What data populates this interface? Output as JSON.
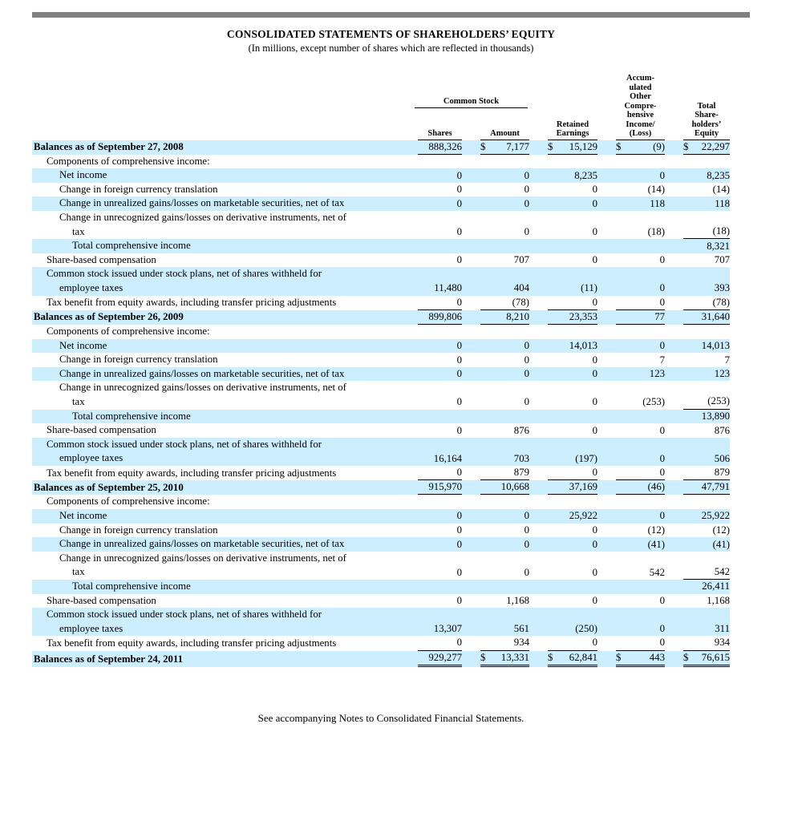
{
  "page": {
    "title": "CONSOLIDATED STATEMENTS OF SHAREHOLDERS’ EQUITY",
    "subtitle": "(In millions, except number of shares which are reflected in thousands)",
    "footer": "See accompanying Notes to Consolidated Financial Statements."
  },
  "colors": {
    "row_highlight": "#cceeff",
    "top_bar": "#808080"
  },
  "table": {
    "group_header": "Common Stock",
    "columns": [
      {
        "lines": [
          "Shares"
        ]
      },
      {
        "lines": [
          "Amount"
        ]
      },
      {
        "lines": [
          "Retained",
          "Earnings"
        ]
      },
      {
        "lines": [
          "Accum-",
          "ulated",
          "Other",
          "Compre-",
          "hensive",
          "Income/",
          "(Loss)"
        ]
      },
      {
        "lines": [
          "Total",
          "Share-",
          "holders’",
          "Equity"
        ]
      }
    ],
    "rows": [
      {
        "label": "Balances as of September 27, 2008",
        "indent": 0,
        "bold": true,
        "shaded": true,
        "dollar": true,
        "border": "all",
        "values": [
          "888,326",
          "7,177",
          "15,129",
          "(9)",
          "22,297"
        ]
      },
      {
        "label": "Components of comprehensive income:",
        "indent": 1,
        "shaded": false,
        "values": [
          "",
          "",
          "",
          "",
          ""
        ]
      },
      {
        "label": "Net income",
        "indent": 2,
        "shaded": true,
        "values": [
          "0",
          "0",
          "8,235",
          "0",
          "8,235"
        ]
      },
      {
        "label": "Change in foreign currency translation",
        "indent": 2,
        "shaded": false,
        "values": [
          "0",
          "0",
          "0",
          "(14)",
          "(14)"
        ]
      },
      {
        "label": "Change in unrealized gains/losses on marketable securities, net of tax",
        "indent": 2,
        "shaded": true,
        "values": [
          "0",
          "0",
          "0",
          "118",
          "118"
        ]
      },
      {
        "label": "Change in unrecognized gains/losses on derivative instruments, net of",
        "label2": "tax",
        "indent": 2,
        "indent2": 3,
        "shaded": false,
        "border": "total",
        "values": [
          "0",
          "0",
          "0",
          "(18)",
          "(18)"
        ]
      },
      {
        "label": "Total comprehensive income",
        "indent": 3,
        "shaded": true,
        "values": [
          "",
          "",
          "",
          "",
          "8,321"
        ]
      },
      {
        "label": "Share-based compensation",
        "indent": 1,
        "shaded": false,
        "values": [
          "0",
          "707",
          "0",
          "0",
          "707"
        ]
      },
      {
        "label": "Common stock issued under stock plans, net of shares withheld for",
        "label2": "employee taxes",
        "indent": 1,
        "indent2": 2,
        "shaded": true,
        "values": [
          "11,480",
          "404",
          "(11)",
          "0",
          "393"
        ]
      },
      {
        "label": "Tax benefit from equity awards, including transfer pricing adjustments",
        "indent": 1,
        "shaded": false,
        "border": "all",
        "values": [
          "0",
          "(78)",
          "0",
          "0",
          "(78)"
        ]
      },
      {
        "label": "Balances as of September 26, 2009",
        "indent": 0,
        "bold": true,
        "shaded": true,
        "border": "all",
        "values": [
          "899,806",
          "8,210",
          "23,353",
          "77",
          "31,640"
        ]
      },
      {
        "label": "Components of comprehensive income:",
        "indent": 1,
        "shaded": false,
        "values": [
          "",
          "",
          "",
          "",
          ""
        ]
      },
      {
        "label": "Net income",
        "indent": 2,
        "shaded": true,
        "values": [
          "0",
          "0",
          "14,013",
          "0",
          "14,013"
        ]
      },
      {
        "label": "Change in foreign currency translation",
        "indent": 2,
        "shaded": false,
        "values": [
          "0",
          "0",
          "0",
          "7",
          "7"
        ]
      },
      {
        "label": "Change in unrealized gains/losses on marketable securities, net of tax",
        "indent": 2,
        "shaded": true,
        "values": [
          "0",
          "0",
          "0",
          "123",
          "123"
        ]
      },
      {
        "label": "Change in unrecognized gains/losses on derivative instruments, net of",
        "label2": "tax",
        "indent": 2,
        "indent2": 3,
        "shaded": false,
        "border": "total",
        "values": [
          "0",
          "0",
          "0",
          "(253)",
          "(253)"
        ]
      },
      {
        "label": "Total comprehensive income",
        "indent": 3,
        "shaded": true,
        "values": [
          "",
          "",
          "",
          "",
          "13,890"
        ]
      },
      {
        "label": "Share-based compensation",
        "indent": 1,
        "shaded": false,
        "values": [
          "0",
          "876",
          "0",
          "0",
          "876"
        ]
      },
      {
        "label": "Common stock issued under stock plans, net of shares withheld for",
        "label2": "employee taxes",
        "indent": 1,
        "indent2": 2,
        "shaded": true,
        "values": [
          "16,164",
          "703",
          "(197)",
          "0",
          "506"
        ]
      },
      {
        "label": "Tax benefit from equity awards, including transfer pricing adjustments",
        "indent": 1,
        "shaded": false,
        "border": "all",
        "values": [
          "0",
          "879",
          "0",
          "0",
          "879"
        ]
      },
      {
        "label": "Balances as of September 25, 2010",
        "indent": 0,
        "bold": true,
        "shaded": true,
        "border": "all",
        "values": [
          "915,970",
          "10,668",
          "37,169",
          "(46)",
          "47,791"
        ]
      },
      {
        "label": "Components of comprehensive income:",
        "indent": 1,
        "shaded": false,
        "values": [
          "",
          "",
          "",
          "",
          ""
        ]
      },
      {
        "label": "Net income",
        "indent": 2,
        "shaded": true,
        "values": [
          "0",
          "0",
          "25,922",
          "0",
          "25,922"
        ]
      },
      {
        "label": "Change in foreign currency translation",
        "indent": 2,
        "shaded": false,
        "values": [
          "0",
          "0",
          "0",
          "(12)",
          "(12)"
        ]
      },
      {
        "label": "Change in unrealized gains/losses on marketable securities, net of tax",
        "indent": 2,
        "shaded": true,
        "values": [
          "0",
          "0",
          "0",
          "(41)",
          "(41)"
        ]
      },
      {
        "label": "Change in unrecognized gains/losses on derivative instruments, net of",
        "label2": "tax",
        "indent": 2,
        "indent2": 3,
        "shaded": false,
        "border": "total",
        "values": [
          "0",
          "0",
          "0",
          "542",
          "542"
        ]
      },
      {
        "label": "Total comprehensive income",
        "indent": 3,
        "shaded": true,
        "values": [
          "",
          "",
          "",
          "",
          "26,411"
        ]
      },
      {
        "label": "Share-based compensation",
        "indent": 1,
        "shaded": false,
        "values": [
          "0",
          "1,168",
          "0",
          "0",
          "1,168"
        ]
      },
      {
        "label": "Common stock issued under stock plans, net of shares withheld for",
        "label2": "employee taxes",
        "indent": 1,
        "indent2": 2,
        "shaded": true,
        "values": [
          "13,307",
          "561",
          "(250)",
          "0",
          "311"
        ]
      },
      {
        "label": "Tax benefit from equity awards, including transfer pricing adjustments",
        "indent": 1,
        "shaded": false,
        "border": "all",
        "values": [
          "0",
          "934",
          "0",
          "0",
          "934"
        ]
      },
      {
        "label": "Balances as of September 24, 2011",
        "indent": 0,
        "bold": true,
        "shaded": true,
        "dollar": true,
        "border": "double",
        "values": [
          "929,277",
          "13,331",
          "62,841",
          "443",
          "76,615"
        ]
      }
    ]
  }
}
